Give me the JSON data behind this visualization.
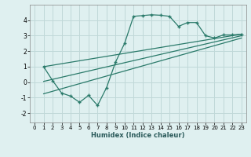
{
  "xlabel": "Humidex (Indice chaleur)",
  "bg_color": "#dff0f0",
  "grid_color": "#c0d8d8",
  "line_color": "#2a7a6a",
  "x_ticks": [
    0,
    1,
    2,
    3,
    4,
    5,
    6,
    7,
    8,
    9,
    10,
    11,
    12,
    13,
    14,
    15,
    16,
    17,
    18,
    19,
    20,
    21,
    22,
    23
  ],
  "y_ticks": [
    -2,
    -1,
    0,
    1,
    2,
    3,
    4
  ],
  "ylim": [
    -2.6,
    5.0
  ],
  "xlim": [
    -0.5,
    23.5
  ],
  "series1_x": [
    1,
    2,
    3,
    4,
    5,
    6,
    7,
    8,
    9,
    10,
    11,
    12,
    13,
    14,
    15,
    16,
    17,
    18,
    19,
    20,
    21,
    22,
    23
  ],
  "series1_y": [
    1.0,
    0.1,
    -0.7,
    -0.9,
    -1.3,
    -0.85,
    -1.5,
    -0.35,
    1.3,
    2.5,
    4.25,
    4.3,
    4.35,
    4.32,
    4.25,
    3.6,
    3.85,
    3.85,
    3.0,
    2.85,
    3.05,
    3.05,
    3.1
  ],
  "series2_x": [
    1,
    23
  ],
  "series2_y": [
    1.0,
    3.1
  ],
  "series3_x": [
    1,
    23
  ],
  "series3_y": [
    0.05,
    3.0
  ],
  "series4_x": [
    1,
    23
  ],
  "series4_y": [
    -0.75,
    2.85
  ]
}
